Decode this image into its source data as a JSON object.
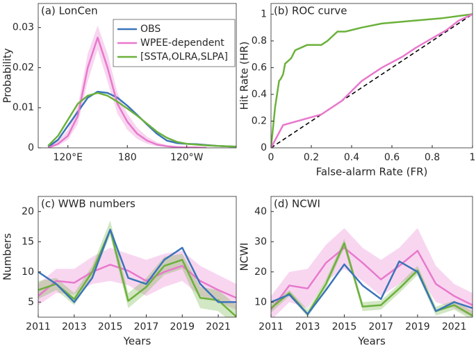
{
  "chart_data": [
    {
      "type": "line",
      "title": "(a) LonCen",
      "ylabel": "Probability",
      "x": [
        100,
        110,
        120,
        130,
        140,
        150,
        160,
        170,
        180,
        190,
        200,
        210,
        220,
        230,
        240,
        250,
        260,
        270,
        280,
        290
      ],
      "xlim": [
        90,
        290
      ],
      "xticks": [
        {
          "value": 120,
          "label": "120°E"
        },
        180,
        {
          "value": 240,
          "label": "120°W"
        }
      ],
      "ylim": [
        0,
        0.036
      ],
      "yticks": [
        0,
        0.01,
        0.02,
        0.03
      ],
      "legend": "upper right",
      "series": [
        {
          "name": "OBS",
          "color": "#3a74b9",
          "values": [
            0.0002,
            0.002,
            0.0055,
            0.009,
            0.0125,
            0.014,
            0.0137,
            0.0125,
            0.0105,
            0.0082,
            0.0058,
            0.0035,
            0.0018,
            0.0012,
            0.001,
            0.0009,
            0.0007,
            0.0005,
            0.0004,
            0.0003
          ]
        },
        {
          "name": "WPEE-dependent",
          "color": "#e878cc",
          "values": [
            0,
            0.001,
            0.003,
            0.008,
            0.02,
            0.0275,
            0.02,
            0.011,
            0.0065,
            0.0035,
            0.0018,
            0.0008,
            0.0004,
            0.0002,
            0.0001,
            0.0001,
            0,
            null,
            null,
            null
          ],
          "lower": [
            0,
            0.0005,
            0.002,
            0.006,
            0.0165,
            0.0245,
            0.0165,
            0.0085,
            0.0045,
            0.0022,
            0.001,
            0.0004,
            0.0002,
            0.0001,
            0,
            0,
            0,
            0,
            0,
            0
          ],
          "upper": [
            0.0003,
            0.0018,
            0.0045,
            0.0105,
            0.0235,
            0.0305,
            0.0235,
            0.0138,
            0.0085,
            0.005,
            0.0028,
            0.0014,
            0.0007,
            0.0004,
            0.0003,
            0.0002,
            0.0001,
            0,
            0,
            0
          ]
        },
        {
          "name": "[SSTA,OLRA,SLPA]",
          "color": "#6bb13b",
          "values": [
            0.0005,
            0.003,
            0.007,
            0.011,
            0.013,
            0.0137,
            0.013,
            0.0115,
            0.0098,
            0.008,
            0.006,
            0.004,
            0.0025,
            0.0015,
            0.001,
            0.0008,
            0.0006,
            0.0005,
            0.0004,
            0.0003
          ]
        }
      ]
    },
    {
      "type": "line",
      "title": "(b) ROC curve",
      "xlabel": "False-alarm Rate (FR)",
      "ylabel": "Hit Rate (HR)",
      "xlim": [
        0,
        1
      ],
      "xticks": [
        0,
        0.2,
        0.4,
        0.6,
        0.8,
        1
      ],
      "ylim": [
        0,
        1.08
      ],
      "yticks": [
        0,
        0.2,
        0.4,
        0.6,
        0.8,
        1
      ],
      "diagonal": true,
      "series": [
        {
          "color": "#6bb13b",
          "x": [
            0,
            0.02,
            0.04,
            0.05,
            0.06,
            0.07,
            0.1,
            0.12,
            0.15,
            0.18,
            0.25,
            0.28,
            0.33,
            0.37,
            0.45,
            0.55,
            0.7,
            0.85,
            1
          ],
          "values": [
            0,
            0.3,
            0.5,
            0.52,
            0.55,
            0.63,
            0.67,
            0.73,
            0.75,
            0.77,
            0.77,
            0.8,
            0.87,
            0.87,
            0.9,
            0.93,
            0.95,
            0.97,
            1
          ]
        },
        {
          "color": "#e878cc",
          "x": [
            0,
            0.06,
            0.25,
            0.35,
            0.45,
            0.55,
            0.65,
            0.72,
            0.8,
            0.87,
            0.93,
            1
          ],
          "values": [
            0,
            0.17,
            0.25,
            0.35,
            0.5,
            0.6,
            0.68,
            0.75,
            0.82,
            0.88,
            0.95,
            1
          ]
        }
      ]
    },
    {
      "type": "line",
      "title": "(c) WWB numbers",
      "xlabel": "Years",
      "ylabel": "Numbers",
      "x": [
        2011,
        2012,
        2013,
        2014,
        2015,
        2016,
        2017,
        2018,
        2019,
        2020,
        2021,
        2022
      ],
      "xlim": [
        2011,
        2022
      ],
      "xticks": [
        2011,
        2013,
        2015,
        2017,
        2019,
        2021
      ],
      "ylim": [
        2.5,
        22.5
      ],
      "yticks": [
        5,
        10,
        15,
        20
      ],
      "series": [
        {
          "color": "#e878cc",
          "values": [
            6,
            8.5,
            8.2,
            10,
            11.2,
            10.2,
            8.5,
            10,
            11,
            8.5,
            7,
            5.7
          ],
          "lower": [
            4.5,
            6.5,
            6.3,
            8,
            8.5,
            7.8,
            6,
            7.5,
            8.5,
            6,
            5,
            3.7
          ],
          "upper": [
            8,
            10.5,
            10.5,
            12.5,
            14,
            13,
            12,
            13,
            13.5,
            11,
            9.5,
            8
          ]
        },
        {
          "color": "#6bb13b",
          "values": [
            7,
            8,
            5.5,
            10,
            17,
            5.2,
            7.5,
            11,
            12,
            5.7,
            5.3,
            2.6
          ],
          "lower": [
            5.5,
            7,
            4.5,
            9,
            16,
            4,
            6.5,
            9.5,
            10.5,
            4,
            3.5,
            1
          ],
          "upper": [
            8.5,
            9,
            6.5,
            11,
            18.5,
            6.5,
            9,
            12.5,
            13,
            7.5,
            7,
            4.5
          ]
        },
        {
          "color": "#3a74b9",
          "values": [
            10,
            8,
            5,
            9,
            17,
            9,
            8,
            12,
            14,
            8,
            5,
            5
          ]
        }
      ]
    },
    {
      "type": "line",
      "title": "(d) NCWI",
      "xlabel": "Years",
      "ylabel": "NCWI",
      "x": [
        2011,
        2012,
        2013,
        2014,
        2015,
        2016,
        2017,
        2018,
        2019,
        2020,
        2021,
        2022
      ],
      "xlim": [
        2011,
        2022
      ],
      "xticks": [
        2011,
        2013,
        2015,
        2017,
        2019,
        2021
      ],
      "ylim": [
        5,
        45
      ],
      "yticks": [
        10,
        20,
        30,
        40
      ],
      "series": [
        {
          "color": "#e878cc",
          "values": [
            7.5,
            15.5,
            14.5,
            23,
            28,
            23,
            17.5,
            22,
            27,
            16,
            12,
            9
          ],
          "lower": [
            4,
            10,
            8,
            17,
            21,
            17,
            12,
            16,
            19.5,
            10,
            8,
            5
          ],
          "upper": [
            12,
            20,
            21,
            29,
            34.5,
            28,
            24,
            28,
            34.5,
            22,
            16,
            13
          ]
        },
        {
          "color": "#6bb13b",
          "values": [
            8,
            13,
            6,
            16,
            29.5,
            8.5,
            9,
            14.5,
            20.5,
            7,
            9,
            5.5
          ],
          "lower": [
            6.5,
            12,
            5,
            14.5,
            28,
            7,
            7.5,
            13,
            19,
            5.5,
            7.5,
            4
          ],
          "upper": [
            9.5,
            14,
            7.5,
            17.5,
            31,
            10,
            10.5,
            16,
            22,
            8.5,
            10.5,
            7
          ]
        },
        {
          "color": "#3a74b9",
          "values": [
            10,
            12.5,
            6,
            14,
            22.5,
            15.5,
            11,
            23.5,
            20,
            7,
            10,
            8
          ]
        }
      ]
    }
  ]
}
